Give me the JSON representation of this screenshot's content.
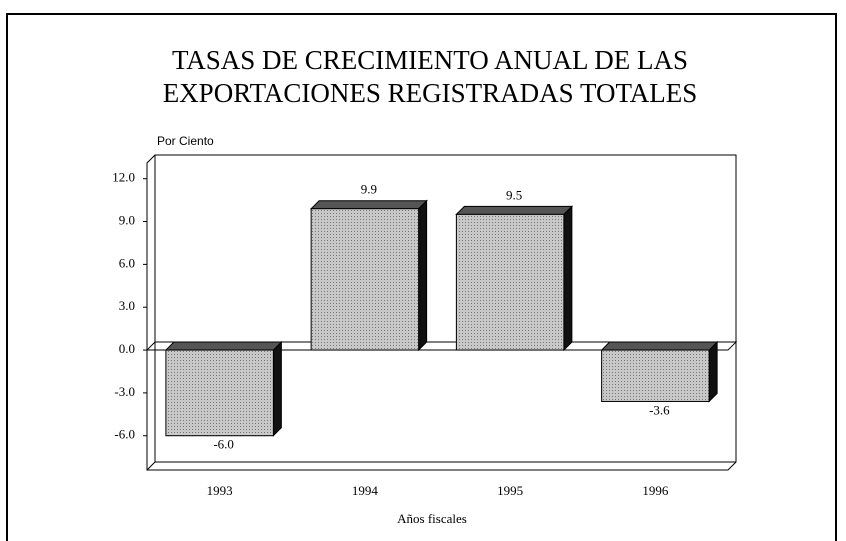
{
  "chart_data": {
    "type": "bar",
    "title": [
      "TASAS DE CRECIMIENTO ANUAL DE LAS",
      "EXPORTACIONES REGISTRADAS TOTALES"
    ],
    "y_label": "Por Ciento",
    "x_label": "Años fiscales",
    "categories": [
      "1993",
      "1994",
      "1995",
      "1996"
    ],
    "values": [
      -6.0,
      9.9,
      9.5,
      -3.6
    ],
    "value_labels": [
      "-6.0",
      "9.9",
      "9.5",
      "-3.6"
    ],
    "color": "#b4b4b4",
    "ylim": [
      -8.4,
      13.1
    ],
    "yticks": [
      {
        "value": 12,
        "label": "12.0"
      },
      {
        "value": 9,
        "label": "9.0"
      },
      {
        "value": 6,
        "label": "6.0"
      },
      {
        "value": 3,
        "label": "3.0"
      },
      {
        "value": 0,
        "label": "0.0"
      },
      {
        "value": -3,
        "label": "-3.0"
      },
      {
        "value": -6,
        "label": "-6.0"
      }
    ]
  }
}
